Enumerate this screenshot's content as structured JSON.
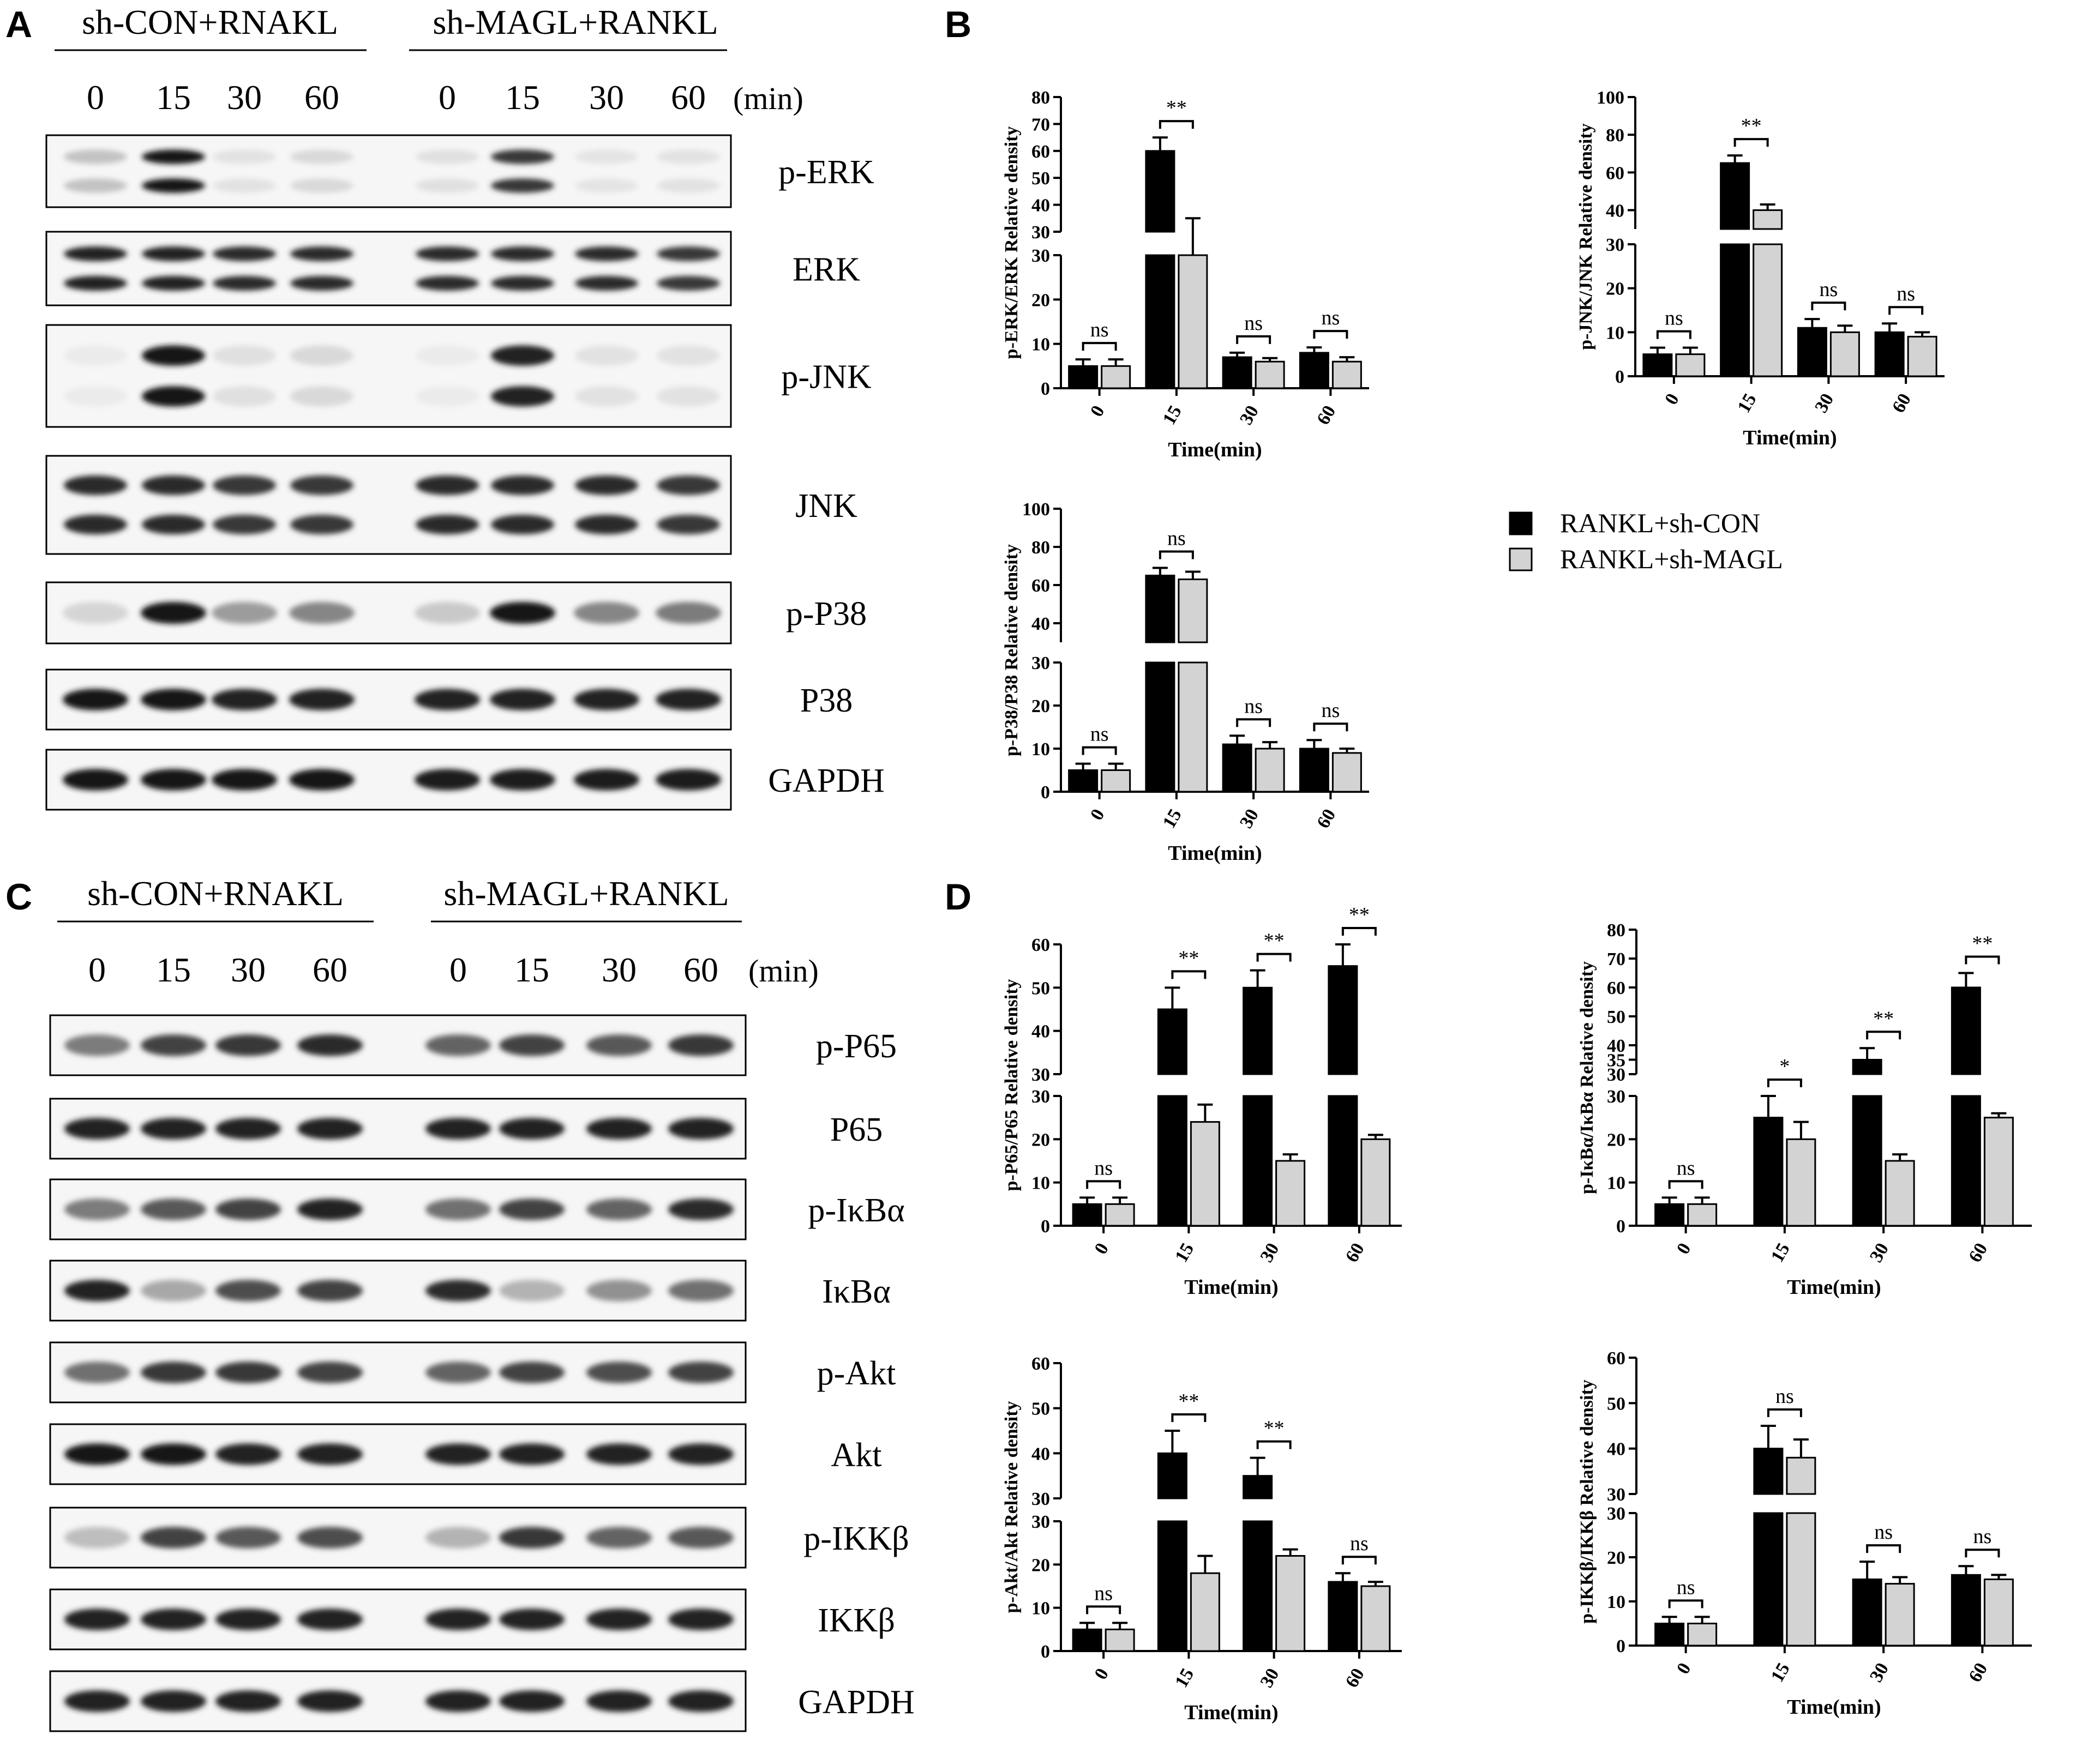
{
  "panel_labels": [
    "A",
    "B",
    "C",
    "D"
  ],
  "blot_panel_A": {
    "group_labels": [
      "sh-CON+RNAKL",
      "sh-MAGL+RANKL"
    ],
    "time_points": [
      "0",
      "15",
      "30",
      "60"
    ],
    "time_unit": "(min)",
    "bands": [
      {
        "label": "p-ERK",
        "intensity": [
          0.18,
          0.95,
          0.04,
          0.08,
          0.05,
          0.8,
          0.03,
          0.04
        ],
        "double": true
      },
      {
        "label": "ERK",
        "intensity": [
          0.9,
          0.9,
          0.85,
          0.85,
          0.85,
          0.85,
          0.85,
          0.8
        ],
        "double": true
      },
      {
        "label": "p-JNK",
        "intensity": [
          0.0,
          0.95,
          0.05,
          0.08,
          0.0,
          0.9,
          0.04,
          0.04
        ],
        "double": true
      },
      {
        "label": "JNK",
        "intensity": [
          0.85,
          0.85,
          0.8,
          0.8,
          0.85,
          0.85,
          0.85,
          0.8
        ],
        "double": true
      },
      {
        "label": "p-P38",
        "intensity": [
          0.1,
          0.95,
          0.35,
          0.45,
          0.15,
          0.95,
          0.45,
          0.5
        ],
        "double": false
      },
      {
        "label": "P38",
        "intensity": [
          0.95,
          0.95,
          0.9,
          0.9,
          0.9,
          0.9,
          0.9,
          0.9
        ],
        "double": false
      },
      {
        "label": "GAPDH",
        "intensity": [
          0.95,
          0.95,
          0.95,
          0.95,
          0.92,
          0.92,
          0.92,
          0.92
        ],
        "double": false
      }
    ]
  },
  "blot_panel_C": {
    "group_labels": [
      "sh-CON+RNAKL",
      "sh-MAGL+RANKL"
    ],
    "time_points": [
      "0",
      "15",
      "30",
      "60"
    ],
    "time_unit": "(min)",
    "bands": [
      {
        "label": "p-P65",
        "intensity": [
          0.5,
          0.75,
          0.8,
          0.85,
          0.6,
          0.75,
          0.65,
          0.8
        ],
        "double": false
      },
      {
        "label": "P65",
        "intensity": [
          0.9,
          0.9,
          0.9,
          0.9,
          0.9,
          0.9,
          0.9,
          0.9
        ],
        "double": false
      },
      {
        "label": "p-IκBα",
        "intensity": [
          0.5,
          0.65,
          0.75,
          0.9,
          0.55,
          0.75,
          0.6,
          0.85
        ],
        "double": false
      },
      {
        "label": "IκBα",
        "intensity": [
          0.9,
          0.3,
          0.7,
          0.75,
          0.85,
          0.25,
          0.4,
          0.55
        ],
        "double": false
      },
      {
        "label": "p-Akt",
        "intensity": [
          0.55,
          0.8,
          0.8,
          0.75,
          0.6,
          0.75,
          0.7,
          0.75
        ],
        "double": false
      },
      {
        "label": "Akt",
        "intensity": [
          0.95,
          0.95,
          0.9,
          0.9,
          0.9,
          0.9,
          0.9,
          0.9
        ],
        "double": false
      },
      {
        "label": "p-IKKβ",
        "intensity": [
          0.2,
          0.75,
          0.65,
          0.7,
          0.25,
          0.8,
          0.6,
          0.65
        ],
        "double": false
      },
      {
        "label": "IKKβ",
        "intensity": [
          0.9,
          0.9,
          0.9,
          0.9,
          0.9,
          0.9,
          0.9,
          0.9
        ],
        "double": false
      },
      {
        "label": "GAPDH",
        "intensity": [
          0.9,
          0.9,
          0.9,
          0.9,
          0.9,
          0.9,
          0.9,
          0.9
        ],
        "double": false
      }
    ]
  },
  "legend": {
    "series_names": [
      "RANKL+sh-CON",
      "RANKL+sh-MAGL"
    ],
    "colors": [
      "#000000",
      "#d3d3d3"
    ]
  },
  "chart_data": [
    {
      "id": "erk",
      "type": "bar",
      "ylabel": "p-ERK/ERK Relative density",
      "xlabel": "Time(min)",
      "categories": [
        "0",
        "15",
        "30",
        "60"
      ],
      "series": [
        {
          "name": "RANKL+sh-CON",
          "values": [
            5,
            60,
            7,
            8
          ],
          "errors": [
            1.5,
            5,
            1,
            1.2
          ]
        },
        {
          "name": "RANKL+sh-MAGL",
          "values": [
            5,
            30,
            6,
            6
          ],
          "errors": [
            1.5,
            5,
            0.8,
            1
          ]
        }
      ],
      "broken_axis": {
        "lower": [
          0,
          30
        ],
        "upper": [
          30,
          80
        ]
      },
      "lower_ticks": [
        0,
        10,
        20,
        30
      ],
      "upper_ticks": [
        30,
        40,
        50,
        60,
        70,
        80
      ],
      "significance": [
        "ns",
        "**",
        "ns",
        "ns"
      ]
    },
    {
      "id": "jnk",
      "type": "bar",
      "ylabel": "p-JNK/JNK Relative density",
      "xlabel": "Time(min)",
      "categories": [
        "0",
        "15",
        "30",
        "60"
      ],
      "series": [
        {
          "name": "RANKL+sh-CON",
          "values": [
            5,
            65,
            11,
            10
          ],
          "errors": [
            1.5,
            4,
            2,
            2
          ]
        },
        {
          "name": "RANKL+sh-MAGL",
          "values": [
            5,
            40,
            10,
            9
          ],
          "errors": [
            1.5,
            3,
            1.5,
            1
          ]
        }
      ],
      "broken_axis": {
        "lower": [
          0,
          30
        ],
        "upper": [
          30,
          100
        ]
      },
      "lower_ticks": [
        0,
        10,
        20,
        30
      ],
      "upper_ticks": [
        40,
        60,
        80,
        100
      ],
      "significance": [
        "ns",
        "**",
        "ns",
        "ns"
      ]
    },
    {
      "id": "p38",
      "type": "bar",
      "ylabel": "p-P38/P38 Relative density",
      "xlabel": "Time(min)",
      "categories": [
        "0",
        "15",
        "30",
        "60"
      ],
      "series": [
        {
          "name": "RANKL+sh-CON",
          "values": [
            5,
            65,
            11,
            10
          ],
          "errors": [
            1.5,
            4,
            2,
            2
          ]
        },
        {
          "name": "RANKL+sh-MAGL",
          "values": [
            5,
            63,
            10,
            9
          ],
          "errors": [
            1.5,
            4,
            1.5,
            1
          ]
        }
      ],
      "broken_axis": {
        "lower": [
          0,
          30
        ],
        "upper": [
          30,
          100
        ]
      },
      "lower_ticks": [
        0,
        10,
        20,
        30
      ],
      "upper_ticks": [
        40,
        60,
        80,
        100
      ],
      "significance": [
        "ns",
        "ns",
        "ns",
        "ns"
      ]
    },
    {
      "id": "p65",
      "type": "bar",
      "ylabel": "p-P65/P65 Relative density",
      "xlabel": "Time(min)",
      "categories": [
        "0",
        "15",
        "30",
        "60"
      ],
      "series": [
        {
          "name": "RANKL+sh-CON",
          "values": [
            5,
            45,
            50,
            55
          ],
          "errors": [
            1.5,
            5,
            4,
            5
          ]
        },
        {
          "name": "RANKL+sh-MAGL",
          "values": [
            5,
            24,
            15,
            20
          ],
          "errors": [
            1.5,
            4,
            1.5,
            1
          ]
        }
      ],
      "broken_axis": {
        "lower": [
          0,
          30
        ],
        "upper": [
          30,
          60
        ]
      },
      "lower_ticks": [
        0,
        10,
        20,
        30
      ],
      "upper_ticks": [
        30,
        40,
        50,
        60
      ],
      "significance": [
        "ns",
        "**",
        "**",
        "**"
      ]
    },
    {
      "id": "ikba",
      "type": "bar",
      "ylabel": "p-IκBα/IκBα  Relative density",
      "xlabel": "Time(min)",
      "categories": [
        "0",
        "15",
        "30",
        "60"
      ],
      "series": [
        {
          "name": "RANKL+sh-CON",
          "values": [
            5,
            25,
            35,
            60
          ],
          "errors": [
            1.5,
            5,
            4,
            5
          ]
        },
        {
          "name": "RANKL+sh-MAGL",
          "values": [
            5,
            20,
            15,
            25
          ],
          "errors": [
            1.5,
            4,
            1.5,
            1
          ]
        }
      ],
      "broken_axis": {
        "lower": [
          0,
          30
        ],
        "upper": [
          30,
          80
        ]
      },
      "lower_ticks": [
        0,
        10,
        20,
        30
      ],
      "upper_ticks": [
        30,
        35,
        40,
        50,
        60,
        70,
        80
      ],
      "significance": [
        "ns",
        "*",
        "**",
        "**"
      ]
    },
    {
      "id": "akt",
      "type": "bar",
      "ylabel": "p-Akt/Akt Relative density",
      "xlabel": "Time(min)",
      "categories": [
        "0",
        "15",
        "30",
        "60"
      ],
      "series": [
        {
          "name": "RANKL+sh-CON",
          "values": [
            5,
            40,
            35,
            16
          ],
          "errors": [
            1.5,
            5,
            4,
            2
          ]
        },
        {
          "name": "RANKL+sh-MAGL",
          "values": [
            5,
            18,
            22,
            15
          ],
          "errors": [
            1.5,
            4,
            1.5,
            1
          ]
        }
      ],
      "broken_axis": {
        "lower": [
          0,
          30
        ],
        "upper": [
          30,
          60
        ]
      },
      "lower_ticks": [
        0,
        10,
        20,
        30
      ],
      "upper_ticks": [
        30,
        40,
        50,
        60
      ],
      "significance": [
        "ns",
        "**",
        "**",
        "ns"
      ]
    },
    {
      "id": "ikkb",
      "type": "bar",
      "ylabel": "p-IKKβ/IKKβ  Relative density",
      "xlabel": "Time(min)",
      "categories": [
        "0",
        "15",
        "30",
        "60"
      ],
      "series": [
        {
          "name": "RANKL+sh-CON",
          "values": [
            5,
            40,
            15,
            16
          ],
          "errors": [
            1.5,
            5,
            4,
            2
          ]
        },
        {
          "name": "RANKL+sh-MAGL",
          "values": [
            5,
            38,
            14,
            15
          ],
          "errors": [
            1.5,
            4,
            1.5,
            1
          ]
        }
      ],
      "broken_axis": {
        "lower": [
          0,
          30
        ],
        "upper": [
          30,
          60
        ]
      },
      "lower_ticks": [
        0,
        10,
        20,
        30
      ],
      "upper_ticks": [
        30,
        40,
        50,
        60
      ],
      "significance": [
        "ns",
        "ns",
        "ns",
        "ns"
      ]
    }
  ]
}
